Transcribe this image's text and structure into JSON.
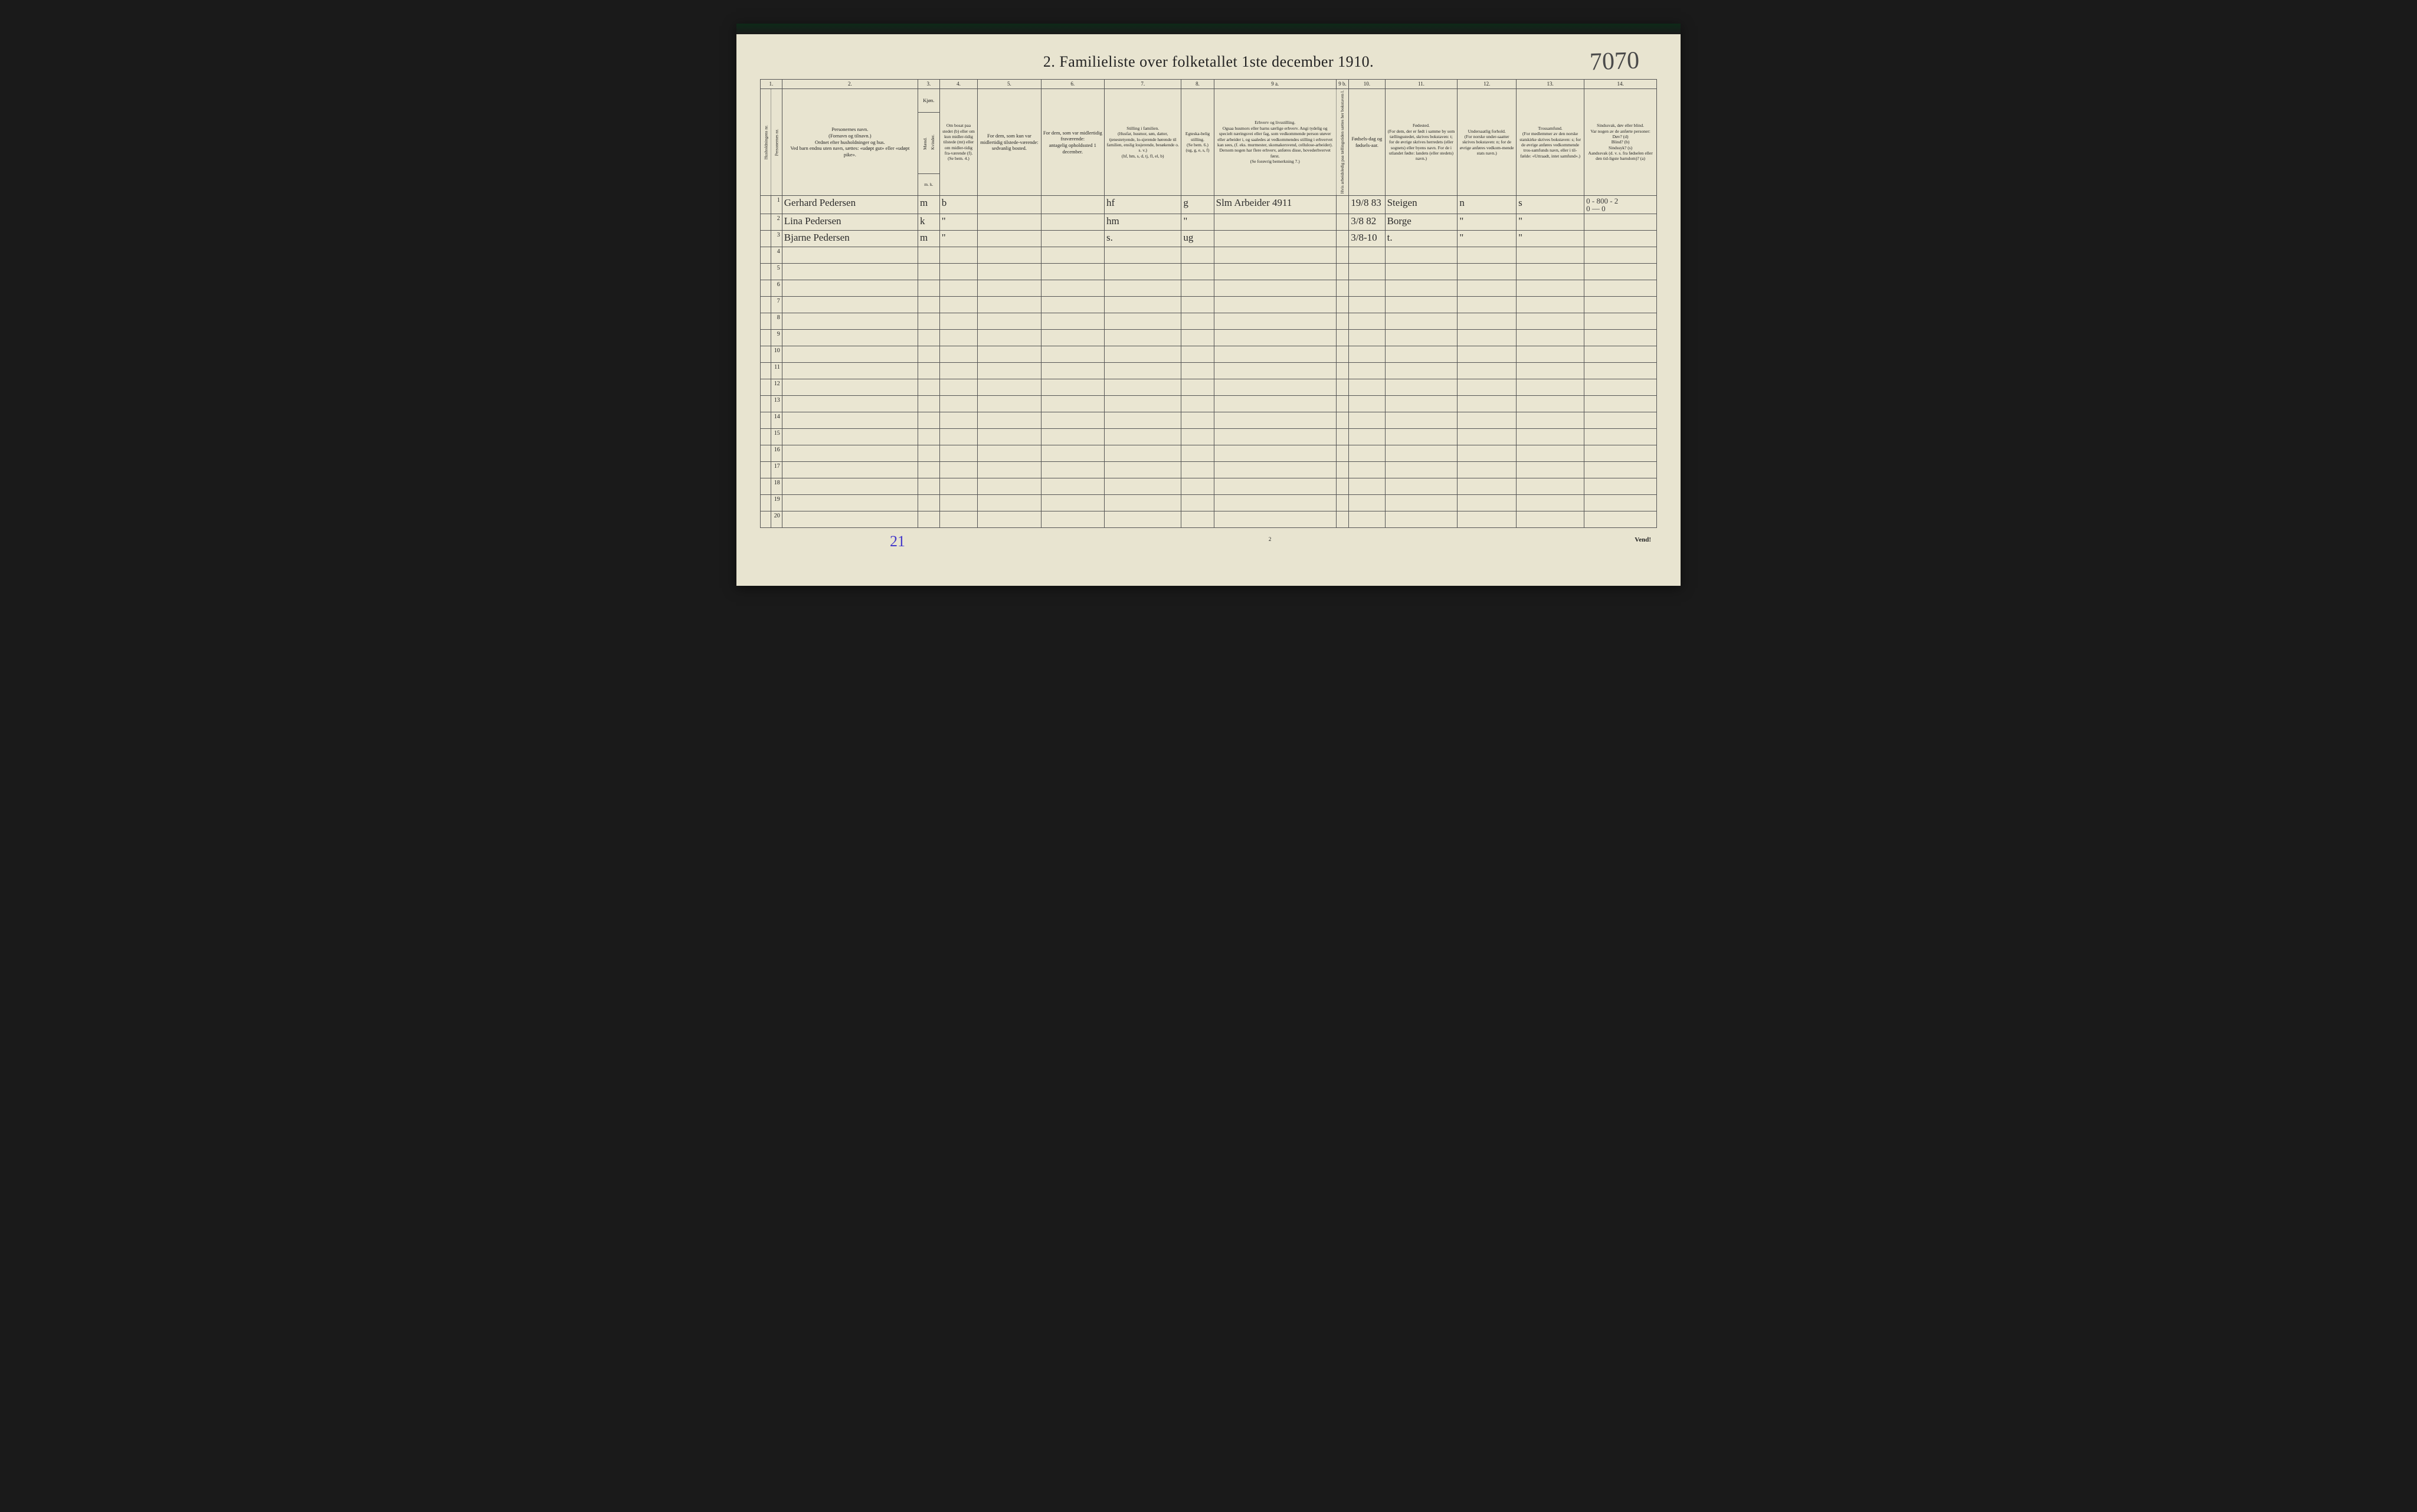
{
  "document": {
    "title": "2.  Familieliste over folketallet 1ste december 1910.",
    "handwritten_number": "7070",
    "page_number": "2",
    "turn_text": "Vend!",
    "bottom_hand": "21",
    "background_color": "#e8e4d0",
    "ink_color": "#222222",
    "handwriting_color": "#2b2b2b",
    "border_color": "#555555"
  },
  "colnums": [
    "1.",
    "2.",
    "3.",
    "4.",
    "5.",
    "6.",
    "7.",
    "8.",
    "9 a.",
    "9 b.",
    "10.",
    "11.",
    "12.",
    "13.",
    "14."
  ],
  "headers": {
    "c1a": "Husholdningens nr.",
    "c1b": "Personernes nr.",
    "c2": "Personernes navn.\n(Fornavn og tilnavn.)\nOrdnet efter husholdninger og hus.\nVed barn endnu uten navn, sættes: «udøpt gut» eller «udøpt pike».",
    "c3": "Kjøn.",
    "c3m": "Mænd.",
    "c3k": "Kvinder.",
    "c3mk": "m.  k.",
    "c4": "Om bosat paa stedet (b) eller om kun midler-tidig tilstede (mt) eller om midler-tidig fra-værende (f). (Se bem. 4.)",
    "c5": "For dem, som kun var midlertidig tilstede-værende:\nsedvanlig bosted.",
    "c6": "For dem, som var midlertidig fraværende:\nantagelig opholdssted 1 december.",
    "c7": "Stilling i familien.\n(Husfar, husmor, søn, datter, tjenestetyende, lo-sjerende hørende til familien, enslig losjerende, besøkende o. s. v.)\n(hf, hm, s, d, tj, fl, el, b)",
    "c8": "Egteska-belig stilling.\n(Se bem. 6.)\n(ug, g, e, s, f)",
    "c9a": "Erhverv og livsstilling.\nOgsaa husmors eller barns særlige erhverv. Angi tydelig og specielt næringsvei eller fag, som vedkommende person utøver eller arbeider i, og saaledes at vedkommendes stilling i erhvervet kan sees, (f. eks. murmester, skomakersvend, cellulose-arbeider). Dersom nogen har flere erhverv, anføres disse, hovederhvervet først.\n(Se forøvrig bemerkning 7.)",
    "c9b": "Hvis arbeidsledig paa tællingstiden sættes her bokstaven l.",
    "c10": "Fødsels-dag og fødsels-aar.",
    "c11": "Fødested.\n(For dem, der er født i samme by som tællingsstedet, skrives bokstaven: t; for de øvrige skrives herredets (eller sognets) eller byens navn. For de i utlandet fødte: landets (eller stedets) navn.)",
    "c12": "Undersaatlig forhold.\n(For norske under-saatter skrives bokstaven: n; for de øvrige anføres vedkom-mende stats navn.)",
    "c13": "Trossamfund.\n(For medlemmer av den norske statskirke skrives bokstaven:  s; for de øvrige anføres vedkommende tros-samfunds navn, eller i til-fælde:  «Uttraadt, intet samfund».)",
    "c14": "Sindssvak, døv eller blind.\nVar nogen av de anførte personer:\nDøv?       (d)\nBlind?      (b)\nSindssyk?  (s)\nAandssvak (d. v. s. fra fødselen eller den tid-ligste barndom)?  (a)"
  },
  "rows": [
    {
      "n": "1",
      "name": "Gerhard Pedersen",
      "mk": "m",
      "res": "b",
      "c5": "",
      "c6": "",
      "fam": "hf",
      "eg": "g",
      "erv": "Slm   Arbeider  4911",
      "l": "",
      "dob": "19/8 83",
      "birth": "Steigen",
      "nat": "n",
      "rel": "s",
      "note": "0 - 800 - 2\n0 — 0"
    },
    {
      "n": "2",
      "name": "Lina Pedersen",
      "mk": "k",
      "res": "\"",
      "c5": "",
      "c6": "",
      "fam": "hm",
      "eg": "\"",
      "erv": "",
      "l": "",
      "dob": "3/8 82",
      "birth": "Borge",
      "nat": "\"",
      "rel": "\"",
      "note": ""
    },
    {
      "n": "3",
      "name": "Bjarne Pedersen",
      "mk": "m",
      "res": "\"",
      "c5": "",
      "c6": "",
      "fam": "s.",
      "eg": "ug",
      "erv": "",
      "l": "",
      "dob": "3/8-10",
      "birth": "t.",
      "nat": "\"",
      "rel": "\"",
      "note": ""
    }
  ],
  "col_widths": {
    "c1a": "1.2%",
    "c1b": "1.2%",
    "c2": "15%",
    "c3": "2.4%",
    "c4": "4.2%",
    "c5": "7%",
    "c6": "7%",
    "c7": "8.5%",
    "c8": "3.6%",
    "c9a": "13.5%",
    "c9b": "1.4%",
    "c10": "4%",
    "c11": "8%",
    "c12": "6.5%",
    "c13": "7.5%",
    "c14": "8%"
  },
  "row_total": 20
}
